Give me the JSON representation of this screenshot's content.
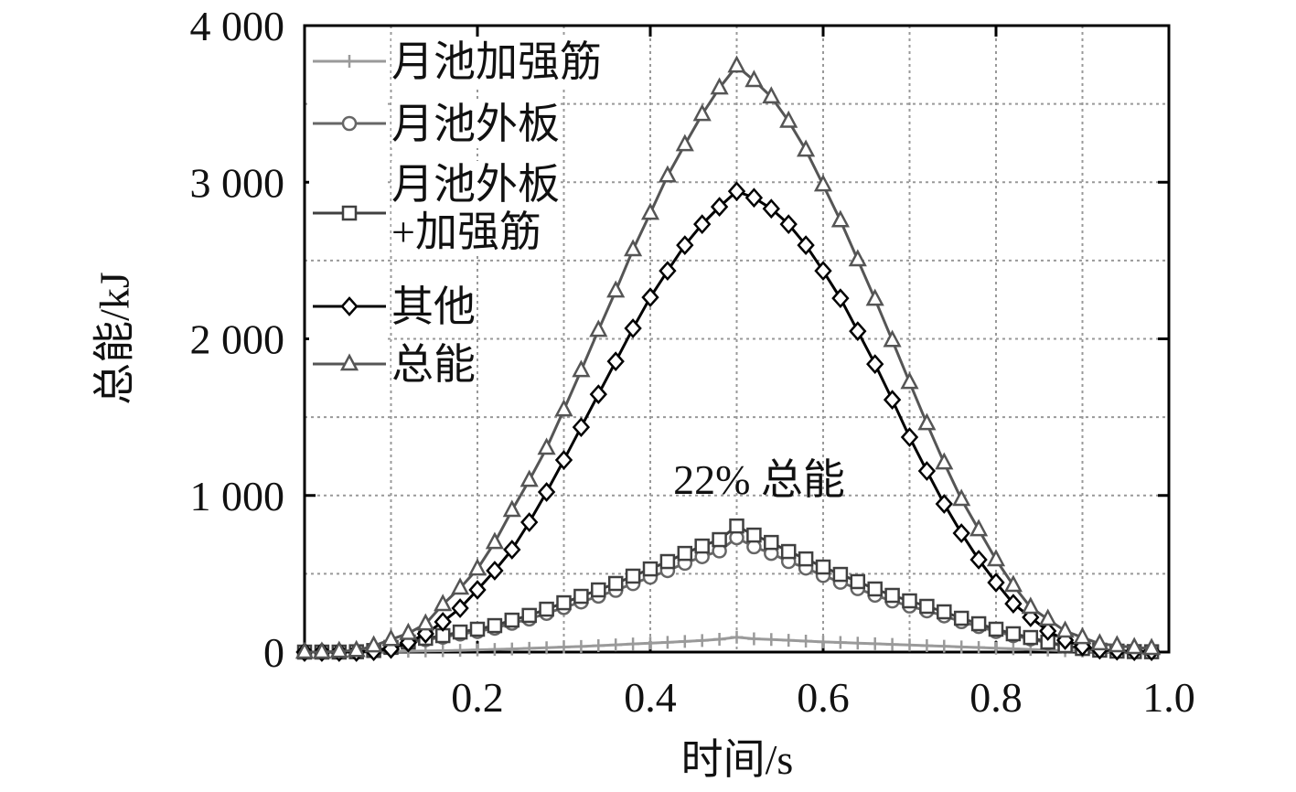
{
  "chart_data": {
    "type": "line",
    "xlabel": "时间/s",
    "ylabel": "总能/kJ",
    "annotation": "22% 总能",
    "x": [
      0,
      0.02,
      0.04,
      0.06,
      0.08,
      0.1,
      0.12,
      0.14,
      0.16,
      0.18,
      0.2,
      0.22,
      0.24,
      0.26,
      0.28,
      0.3,
      0.32,
      0.34,
      0.36,
      0.38,
      0.4,
      0.42,
      0.44,
      0.46,
      0.48,
      0.5,
      0.52,
      0.54,
      0.56,
      0.58,
      0.6,
      0.62,
      0.64,
      0.66,
      0.68,
      0.7,
      0.72,
      0.74,
      0.76,
      0.78,
      0.8,
      0.82,
      0.84,
      0.86,
      0.88,
      0.9,
      0.92,
      0.94,
      0.96,
      0.98
    ],
    "series": [
      {
        "name": "月池加强筋",
        "color": "#9a9a9a",
        "marker": "plus",
        "values": [
          0,
          0,
          0,
          0,
          1,
          3,
          5,
          7,
          9,
          11,
          14,
          17,
          20,
          24,
          28,
          32,
          36,
          41,
          46,
          52,
          57,
          62,
          68,
          74,
          82,
          95,
          85,
          80,
          75,
          70,
          65,
          61,
          57,
          53,
          49,
          45,
          41,
          37,
          33,
          29,
          25,
          21,
          17,
          13,
          9,
          6,
          4,
          2,
          1,
          1
        ]
      },
      {
        "name": "月池外板",
        "color": "#666666",
        "marker": "circle",
        "values": [
          0,
          0,
          0,
          2,
          9,
          27,
          58,
          79,
          95,
          115,
          131,
          152,
          184,
          211,
          247,
          284,
          320,
          357,
          394,
          437,
          478,
          520,
          567,
          609,
          646,
          730,
          672,
          630,
          578,
          536,
          489,
          446,
          405,
          363,
          326,
          294,
          263,
          231,
          194,
          163,
          131,
          105,
          84,
          58,
          37,
          21,
          11,
          5,
          3,
          2
        ]
      },
      {
        "name": "月池外板\n+加强筋",
        "color": "#404040",
        "marker": "square",
        "values": [
          0,
          0,
          0,
          2,
          10,
          30,
          64,
          88,
          105,
          128,
          146,
          169,
          204,
          234,
          274,
          315,
          356,
          397,
          438,
          485,
          531,
          578,
          630,
          677,
          718,
          805,
          747,
          700,
          642,
          595,
          543,
          496,
          450,
          403,
          362,
          327,
          292,
          257,
          216,
          181,
          146,
          117,
          93,
          64,
          41,
          23,
          12,
          6,
          3,
          2
        ]
      },
      {
        "name": "其他",
        "color": "#000000",
        "marker": "diamond",
        "values": [
          0,
          0,
          0,
          0,
          5,
          20,
          60,
          117,
          193,
          280,
          397,
          520,
          654,
          829,
          1022,
          1226,
          1436,
          1646,
          1856,
          2067,
          2265,
          2434,
          2598,
          2732,
          2843,
          2942,
          2901,
          2831,
          2732,
          2598,
          2434,
          2259,
          2049,
          1839,
          1611,
          1372,
          1156,
          946,
          759,
          590,
          444,
          309,
          222,
          134,
          76,
          35,
          15,
          8,
          5,
          5
        ]
      },
      {
        "name": "总能",
        "color": "#555555",
        "marker": "triangle",
        "values": [
          0,
          0,
          5,
          10,
          40,
          80,
          120,
          180,
          304,
          409,
          531,
          700,
          905,
          1097,
          1302,
          1547,
          1798,
          2055,
          2306,
          2569,
          2802,
          3041,
          3240,
          3433,
          3602,
          3742,
          3650,
          3545,
          3390,
          3205,
          2983,
          2755,
          2505,
          2253,
          1990,
          1722,
          1459,
          1208,
          975,
          782,
          590,
          426,
          286,
          210,
          134,
          93,
          53,
          41,
          29,
          23
        ]
      }
    ],
    "xlim": [
      0,
      1.0
    ],
    "xticks": [
      0.2,
      0.4,
      0.6,
      {
        "value": 0.8,
        "label": "0.8"
      },
      {
        "value": 1.0,
        "label": "1.0"
      }
    ],
    "x_minor_ticks": [
      0.1,
      0.3,
      0.5,
      0.7,
      0.9
    ],
    "ylim": [
      0,
      4000
    ],
    "yticks": [
      0,
      {
        "value": 1000,
        "label": "1 000"
      },
      {
        "value": 2000,
        "label": "2 000"
      },
      {
        "value": 3000,
        "label": "3 000"
      },
      {
        "value": 4000,
        "label": "4 000"
      }
    ],
    "y_minor_ticks": [
      500,
      1500,
      2500,
      3500
    ],
    "grid": true,
    "legend": "upper left"
  }
}
